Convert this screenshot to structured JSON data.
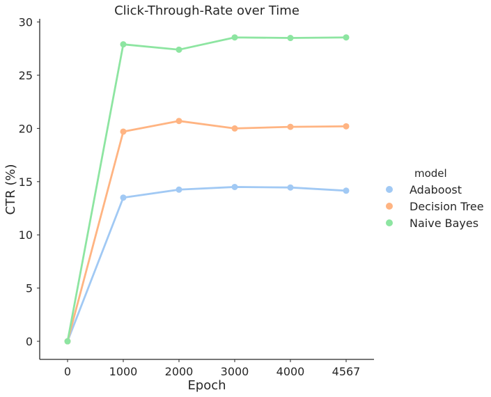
{
  "chart_data": {
    "type": "line",
    "title": "Click-Through-Rate over Time",
    "xlabel": "Epoch",
    "ylabel": "CTR (%)",
    "categories": [
      "0",
      "1000",
      "2000",
      "3000",
      "4000",
      "4567"
    ],
    "ylim": [
      -1.7,
      30.3
    ],
    "yticks": [
      0,
      5,
      10,
      15,
      20,
      25,
      30
    ],
    "grid": false,
    "legend": {
      "title": "model",
      "placement": "right"
    },
    "series": [
      {
        "name": "Adaboost",
        "color": "#a1c9f4",
        "values": [
          0,
          13.5,
          14.25,
          14.5,
          14.45,
          14.15
        ]
      },
      {
        "name": "Decision Tree",
        "color": "#ffb482",
        "values": [
          0,
          19.7,
          20.7,
          20.0,
          20.15,
          20.2
        ]
      },
      {
        "name": "Naive Bayes",
        "color": "#8de5a1",
        "values": [
          0,
          27.9,
          27.4,
          28.55,
          28.5,
          28.55
        ]
      }
    ]
  }
}
